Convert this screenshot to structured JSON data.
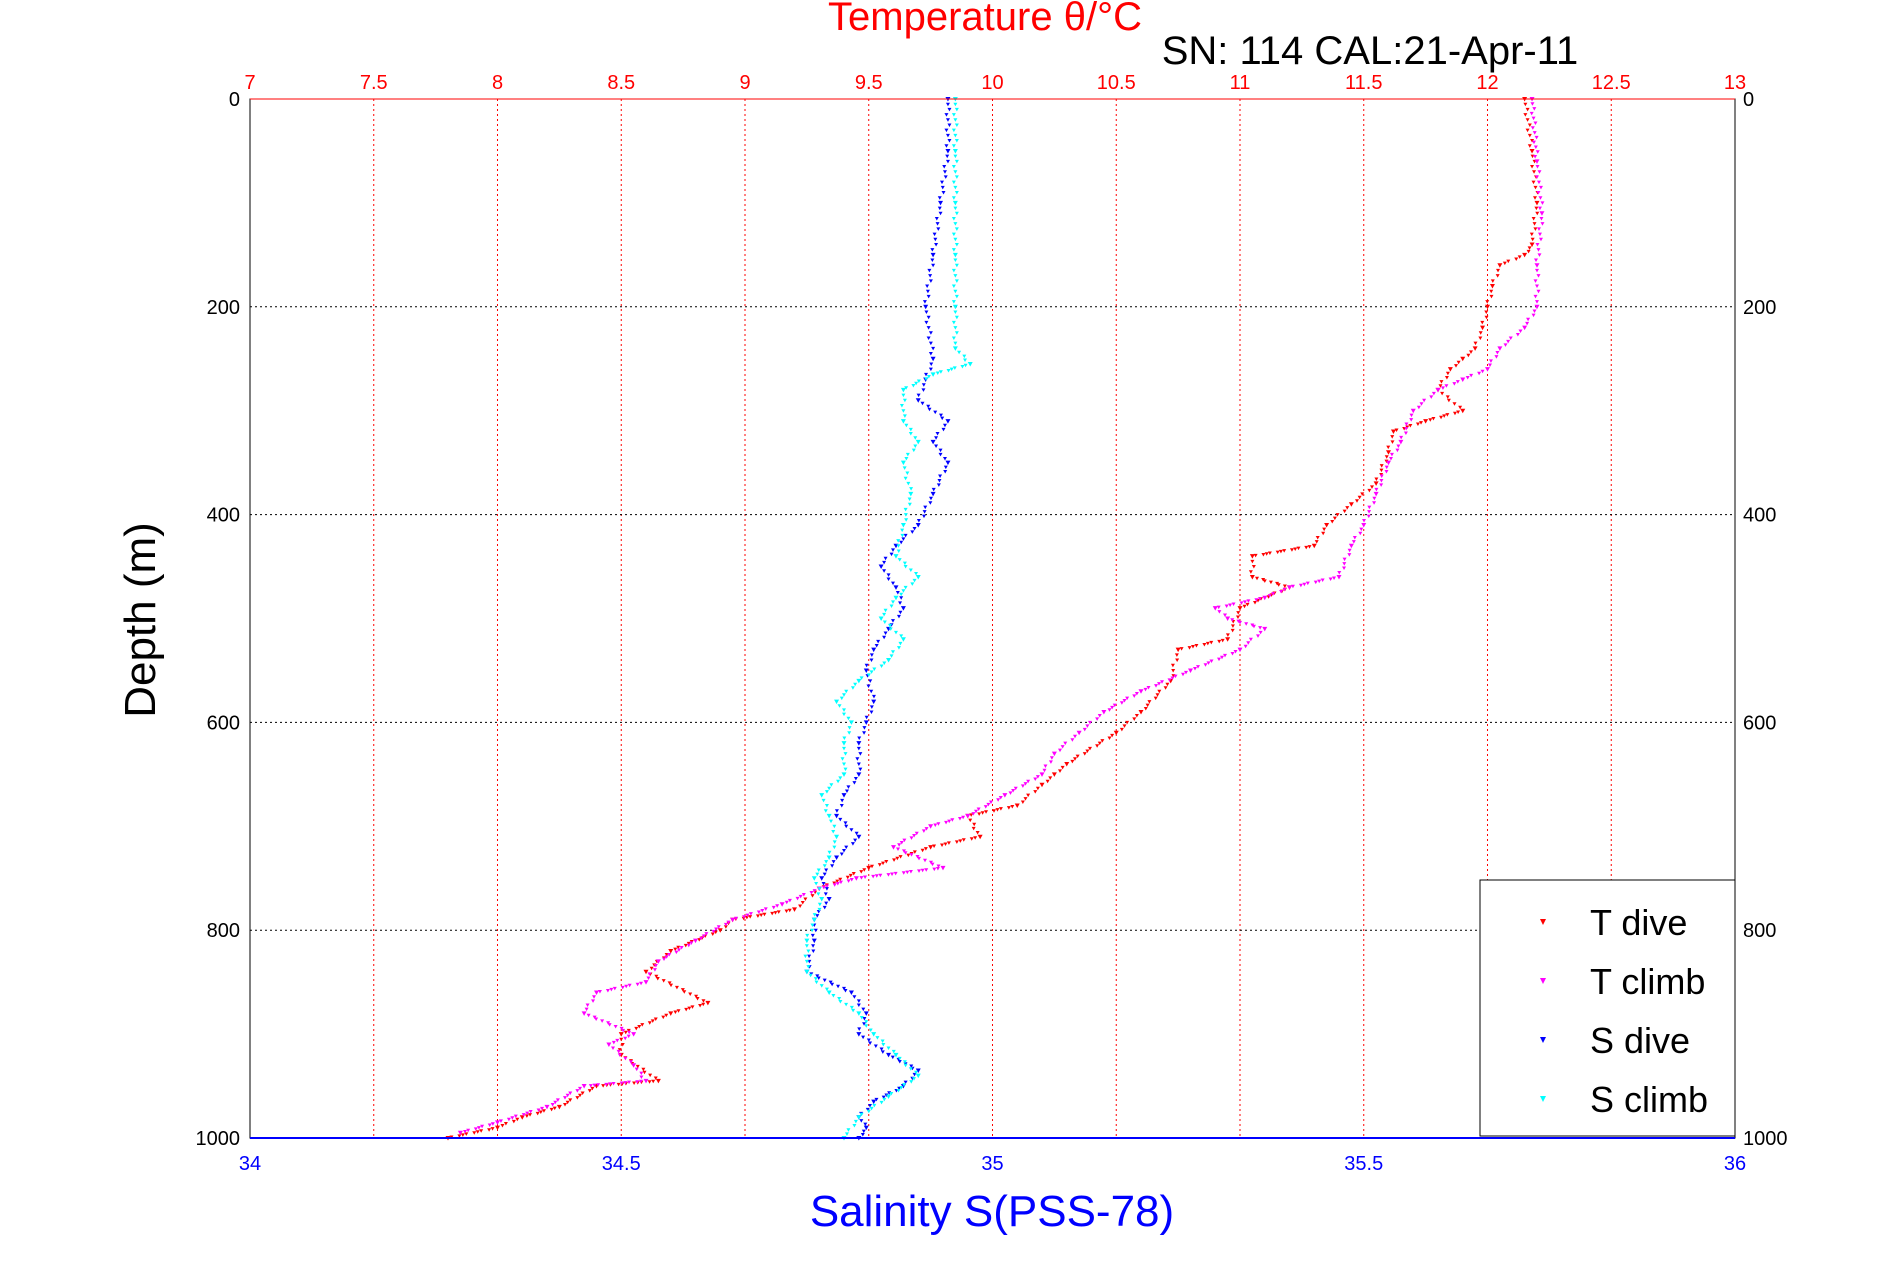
{
  "chart_data": {
    "type": "scatter",
    "title_top_axis": "Temperature θ/°C",
    "annotation": "SN: 114  CAL:21-Apr-11",
    "xlabel": "Salinity S(PSS-78)",
    "ylabel": "Depth (m)",
    "y_axis": {
      "range": [
        0,
        1000
      ],
      "reversed": true,
      "ticks": [
        "0",
        "200",
        "400",
        "600",
        "800",
        "1000"
      ]
    },
    "x_bottom": {
      "range": [
        34,
        36
      ],
      "ticks": [
        "34",
        "34.5",
        "35",
        "35.5",
        "36"
      ],
      "color": "#0000ff"
    },
    "x_top": {
      "range": [
        7,
        13
      ],
      "ticks": [
        "7",
        "7.5",
        "8",
        "8.5",
        "9",
        "9.5",
        "10",
        "10.5",
        "11",
        "11.5",
        "12",
        "12.5",
        "13"
      ],
      "color": "#ff0000"
    },
    "grid": true,
    "legend_position": "bottom-right",
    "series": [
      {
        "name": "T dive",
        "axis": "temperature",
        "color": "#ff0000",
        "points": [
          [
            12.15,
            0
          ],
          [
            12.18,
            50
          ],
          [
            12.2,
            100
          ],
          [
            12.18,
            140
          ],
          [
            12.15,
            150
          ],
          [
            12.05,
            160
          ],
          [
            12.02,
            180
          ],
          [
            12.0,
            200
          ],
          [
            11.98,
            220
          ],
          [
            11.95,
            240
          ],
          [
            11.9,
            250
          ],
          [
            11.85,
            260
          ],
          [
            11.8,
            280
          ],
          [
            11.9,
            300
          ],
          [
            11.75,
            310
          ],
          [
            11.62,
            320
          ],
          [
            11.6,
            340
          ],
          [
            11.55,
            370
          ],
          [
            11.45,
            390
          ],
          [
            11.35,
            410
          ],
          [
            11.3,
            430
          ],
          [
            11.05,
            440
          ],
          [
            11.05,
            460
          ],
          [
            11.2,
            470
          ],
          [
            11.0,
            490
          ],
          [
            10.95,
            520
          ],
          [
            10.75,
            530
          ],
          [
            10.72,
            560
          ],
          [
            10.6,
            590
          ],
          [
            10.5,
            610
          ],
          [
            10.3,
            640
          ],
          [
            10.25,
            650
          ],
          [
            10.2,
            660
          ],
          [
            10.1,
            680
          ],
          [
            9.9,
            690
          ],
          [
            9.95,
            710
          ],
          [
            9.75,
            720
          ],
          [
            9.5,
            740
          ],
          [
            9.3,
            760
          ],
          [
            9.2,
            780
          ],
          [
            8.95,
            790
          ],
          [
            8.9,
            800
          ],
          [
            8.7,
            820
          ],
          [
            8.6,
            840
          ],
          [
            8.85,
            870
          ],
          [
            8.7,
            880
          ],
          [
            8.5,
            900
          ],
          [
            8.5,
            920
          ],
          [
            8.65,
            945
          ],
          [
            8.4,
            950
          ],
          [
            8.25,
            970
          ],
          [
            8.1,
            980
          ],
          [
            8.0,
            990
          ],
          [
            7.8,
            1000
          ]
        ]
      },
      {
        "name": "T climb",
        "axis": "temperature",
        "color": "#ff00ff",
        "points": [
          [
            12.18,
            0
          ],
          [
            12.2,
            60
          ],
          [
            12.22,
            110
          ],
          [
            12.2,
            160
          ],
          [
            12.2,
            200
          ],
          [
            12.15,
            220
          ],
          [
            12.05,
            240
          ],
          [
            12.0,
            260
          ],
          [
            11.9,
            270
          ],
          [
            11.8,
            280
          ],
          [
            11.7,
            300
          ],
          [
            11.65,
            330
          ],
          [
            11.6,
            350
          ],
          [
            11.55,
            380
          ],
          [
            11.5,
            410
          ],
          [
            11.45,
            430
          ],
          [
            11.4,
            460
          ],
          [
            11.2,
            470
          ],
          [
            11.1,
            480
          ],
          [
            10.9,
            490
          ],
          [
            10.95,
            500
          ],
          [
            11.1,
            510
          ],
          [
            11.0,
            530
          ],
          [
            10.8,
            550
          ],
          [
            10.6,
            570
          ],
          [
            10.45,
            590
          ],
          [
            10.35,
            610
          ],
          [
            10.25,
            630
          ],
          [
            10.2,
            650
          ],
          [
            10.05,
            670
          ],
          [
            9.9,
            690
          ],
          [
            9.75,
            700
          ],
          [
            9.6,
            720
          ],
          [
            9.8,
            740
          ],
          [
            9.45,
            750
          ],
          [
            9.3,
            760
          ],
          [
            9.15,
            775
          ],
          [
            8.95,
            790
          ],
          [
            8.8,
            810
          ],
          [
            8.65,
            830
          ],
          [
            8.6,
            850
          ],
          [
            8.4,
            860
          ],
          [
            8.35,
            880
          ],
          [
            8.55,
            900
          ],
          [
            8.45,
            910
          ],
          [
            8.55,
            930
          ],
          [
            8.6,
            945
          ],
          [
            8.35,
            950
          ],
          [
            8.2,
            970
          ],
          [
            8.0,
            985
          ],
          [
            7.85,
            995
          ]
        ]
      },
      {
        "name": "S dive",
        "axis": "salinity",
        "color": "#0000ff",
        "points": [
          [
            34.94,
            0
          ],
          [
            34.94,
            50
          ],
          [
            34.93,
            100
          ],
          [
            34.92,
            150
          ],
          [
            34.91,
            200
          ],
          [
            34.92,
            250
          ],
          [
            34.91,
            270
          ],
          [
            34.9,
            290
          ],
          [
            34.94,
            310
          ],
          [
            34.92,
            330
          ],
          [
            34.94,
            350
          ],
          [
            34.92,
            380
          ],
          [
            34.9,
            410
          ],
          [
            34.87,
            430
          ],
          [
            34.85,
            450
          ],
          [
            34.87,
            470
          ],
          [
            34.88,
            490
          ],
          [
            34.86,
            510
          ],
          [
            34.84,
            530
          ],
          [
            34.83,
            550
          ],
          [
            34.84,
            580
          ],
          [
            34.83,
            600
          ],
          [
            34.82,
            620
          ],
          [
            34.82,
            650
          ],
          [
            34.8,
            670
          ],
          [
            34.79,
            690
          ],
          [
            34.82,
            710
          ],
          [
            34.79,
            730
          ],
          [
            34.77,
            750
          ],
          [
            34.78,
            770
          ],
          [
            34.76,
            790
          ],
          [
            34.76,
            810
          ],
          [
            34.75,
            840
          ],
          [
            34.81,
            860
          ],
          [
            34.83,
            880
          ],
          [
            34.82,
            900
          ],
          [
            34.86,
            920
          ],
          [
            34.9,
            935
          ],
          [
            34.88,
            950
          ],
          [
            34.84,
            965
          ],
          [
            34.82,
            980
          ],
          [
            34.83,
            990
          ],
          [
            34.82,
            1000
          ]
        ]
      },
      {
        "name": "S climb",
        "axis": "salinity",
        "color": "#00ffff",
        "points": [
          [
            34.95,
            0
          ],
          [
            34.95,
            50
          ],
          [
            34.95,
            100
          ],
          [
            34.95,
            150
          ],
          [
            34.95,
            200
          ],
          [
            34.95,
            240
          ],
          [
            34.97,
            255
          ],
          [
            34.92,
            265
          ],
          [
            34.88,
            280
          ],
          [
            34.88,
            310
          ],
          [
            34.9,
            330
          ],
          [
            34.88,
            350
          ],
          [
            34.89,
            380
          ],
          [
            34.88,
            410
          ],
          [
            34.87,
            440
          ],
          [
            34.9,
            460
          ],
          [
            34.87,
            480
          ],
          [
            34.85,
            500
          ],
          [
            34.88,
            520
          ],
          [
            34.86,
            540
          ],
          [
            34.82,
            560
          ],
          [
            34.79,
            580
          ],
          [
            34.81,
            600
          ],
          [
            34.8,
            620
          ],
          [
            34.8,
            650
          ],
          [
            34.77,
            670
          ],
          [
            34.78,
            690
          ],
          [
            34.79,
            710
          ],
          [
            34.78,
            730
          ],
          [
            34.76,
            750
          ],
          [
            34.77,
            770
          ],
          [
            34.76,
            790
          ],
          [
            34.75,
            810
          ],
          [
            34.75,
            840
          ],
          [
            34.78,
            860
          ],
          [
            34.82,
            880
          ],
          [
            34.84,
            900
          ],
          [
            34.87,
            920
          ],
          [
            34.9,
            940
          ],
          [
            34.86,
            960
          ],
          [
            34.82,
            980
          ],
          [
            34.8,
            1000
          ]
        ]
      }
    ]
  }
}
